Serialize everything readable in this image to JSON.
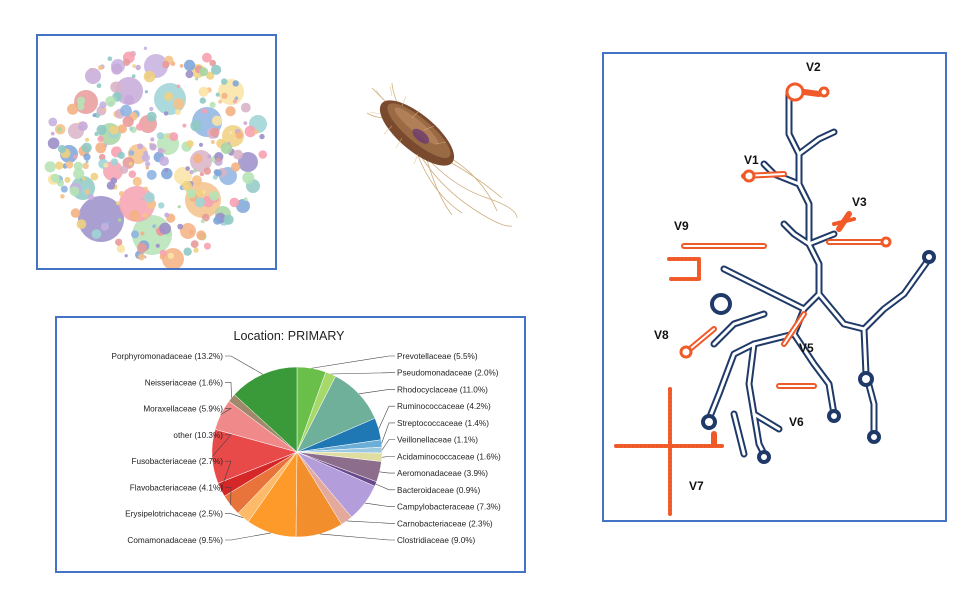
{
  "chart_data": {
    "type": "pie",
    "title": "Location: PRIMARY",
    "slices": [
      {
        "label": "Prevotellaceae (5.5%)",
        "value": 5.5,
        "color": "#6abf4b"
      },
      {
        "label": "Pseudomonadaceae (2.0%)",
        "value": 2.0,
        "color": "#a6d96a"
      },
      {
        "label": "Rhodocyclaceae (11.0%)",
        "value": 11.0,
        "color": "#6fb09a"
      },
      {
        "label": "Ruminococcaceae (4.2%)",
        "value": 4.2,
        "color": "#1f77b4"
      },
      {
        "label": "Streptococcaceae (1.4%)",
        "value": 1.4,
        "color": "#6baed6"
      },
      {
        "label": "Veillonellaceae (1.1%)",
        "value": 1.1,
        "color": "#9ecae1"
      },
      {
        "label": "Acidaminococcaceae (1.6%)",
        "value": 1.6,
        "color": "#e0dda0"
      },
      {
        "label": "Aeromonadaceae (3.9%)",
        "value": 3.9,
        "color": "#8c6d8c"
      },
      {
        "label": "Bacteroidaceae (0.9%)",
        "value": 0.9,
        "color": "#6a4a8c"
      },
      {
        "label": "Campylobacteraceae (7.3%)",
        "value": 7.3,
        "color": "#b39ddb"
      },
      {
        "label": "Carnobacteriaceae (2.3%)",
        "value": 2.3,
        "color": "#e3a99c"
      },
      {
        "label": "Clostridiaceae (9.0%)",
        "value": 9.0,
        "color": "#f28e2b"
      },
      {
        "label": "Comamonadaceae (9.5%)",
        "value": 9.5,
        "color": "#fd9a2a"
      },
      {
        "label": "Erysipelotrichaceae (2.5%)",
        "value": 2.5,
        "color": "#fdbb6a"
      },
      {
        "label": "Flavobacteriaceae (4.1%)",
        "value": 4.1,
        "color": "#e8743b"
      },
      {
        "label": "Fusobacteriaceae (2.7%)",
        "value": 2.7,
        "color": "#d62728"
      },
      {
        "label": "other (10.3%)",
        "value": 10.3,
        "color": "#e84a4a"
      },
      {
        "label": "Moraxellaceae (5.9%)",
        "value": 5.9,
        "color": "#f08a8a"
      },
      {
        "label": "Neisseriaceae (1.6%)",
        "value": 1.6,
        "color": "#a0896b"
      },
      {
        "label": "Porphyromonadaceae (13.2%)",
        "value": 13.2,
        "color": "#3a9a3a"
      }
    ]
  },
  "rna_diagram": {
    "region_labels": [
      "V2",
      "V1",
      "V3",
      "V9",
      "V8",
      "V5",
      "V6",
      "V7"
    ],
    "colors": {
      "backbone": "#1f3a68",
      "variable": "#f05a28"
    }
  }
}
